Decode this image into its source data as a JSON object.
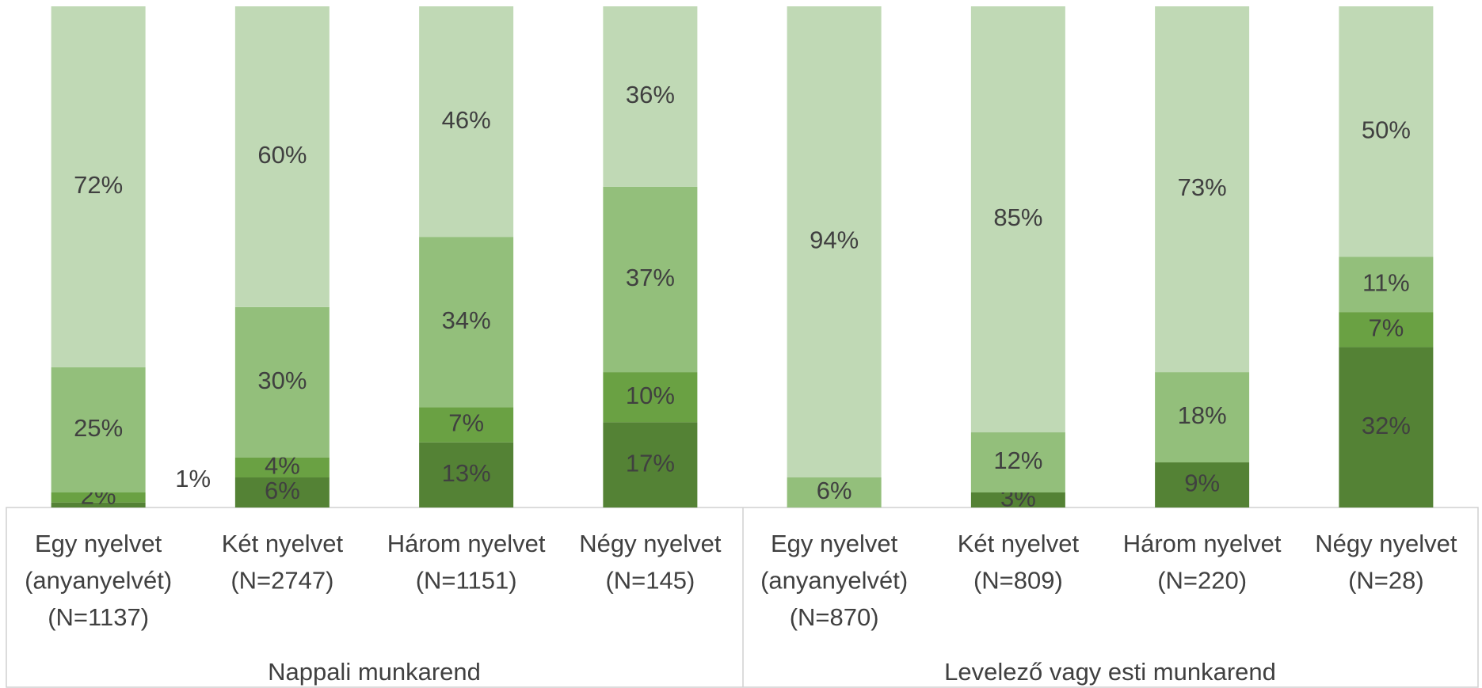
{
  "chart_data": {
    "type": "stacked_bar",
    "categories": [
      [
        "Egy nyelvet",
        "(anyanyelvét)",
        "(N=1137)"
      ],
      [
        "Két nyelvet",
        "(N=2747)"
      ],
      [
        "Három nyelvet",
        "(N=1151)"
      ],
      [
        "Négy nyelvet",
        "(N=145)"
      ],
      [
        "Egy nyelvet",
        "(anyanyelvét)",
        "(N=870)"
      ],
      [
        "Két nyelvet",
        "(N=809)"
      ],
      [
        "Három nyelvet",
        "(N=220)"
      ],
      [
        "Négy nyelvet",
        "(N=28)"
      ]
    ],
    "groups": [
      {
        "label": "Nappali munkarend",
        "size": 4
      },
      {
        "label": "Levelező vagy esti munkarend",
        "size": 4
      }
    ],
    "series": [
      {
        "color": "#548235",
        "values": [
          1,
          6,
          13,
          17,
          null,
          3,
          9,
          32
        ],
        "value_labels": [
          "1%",
          "6%",
          "13%",
          "17%",
          null,
          "3%",
          "9%",
          "32%"
        ]
      },
      {
        "color": "#6aa143",
        "values": [
          2,
          4,
          7,
          10,
          null,
          null,
          null,
          7
        ],
        "value_labels": [
          "2%",
          "4%",
          "7%",
          "10%",
          null,
          null,
          null,
          "7%"
        ]
      },
      {
        "color": "#93bf7b",
        "values": [
          25,
          30,
          34,
          37,
          6,
          12,
          18,
          11
        ],
        "value_labels": [
          "25%",
          "30%",
          "34%",
          "37%",
          "6%",
          "12%",
          "18%",
          "11%"
        ]
      },
      {
        "color": "#c0d9b5",
        "values": [
          72,
          60,
          46,
          36,
          94,
          85,
          73,
          50
        ],
        "value_labels": [
          "72%",
          "60%",
          "46%",
          "36%",
          "94%",
          "85%",
          "73%",
          "50%"
        ]
      }
    ],
    "ylim": [
      0,
      100
    ]
  }
}
